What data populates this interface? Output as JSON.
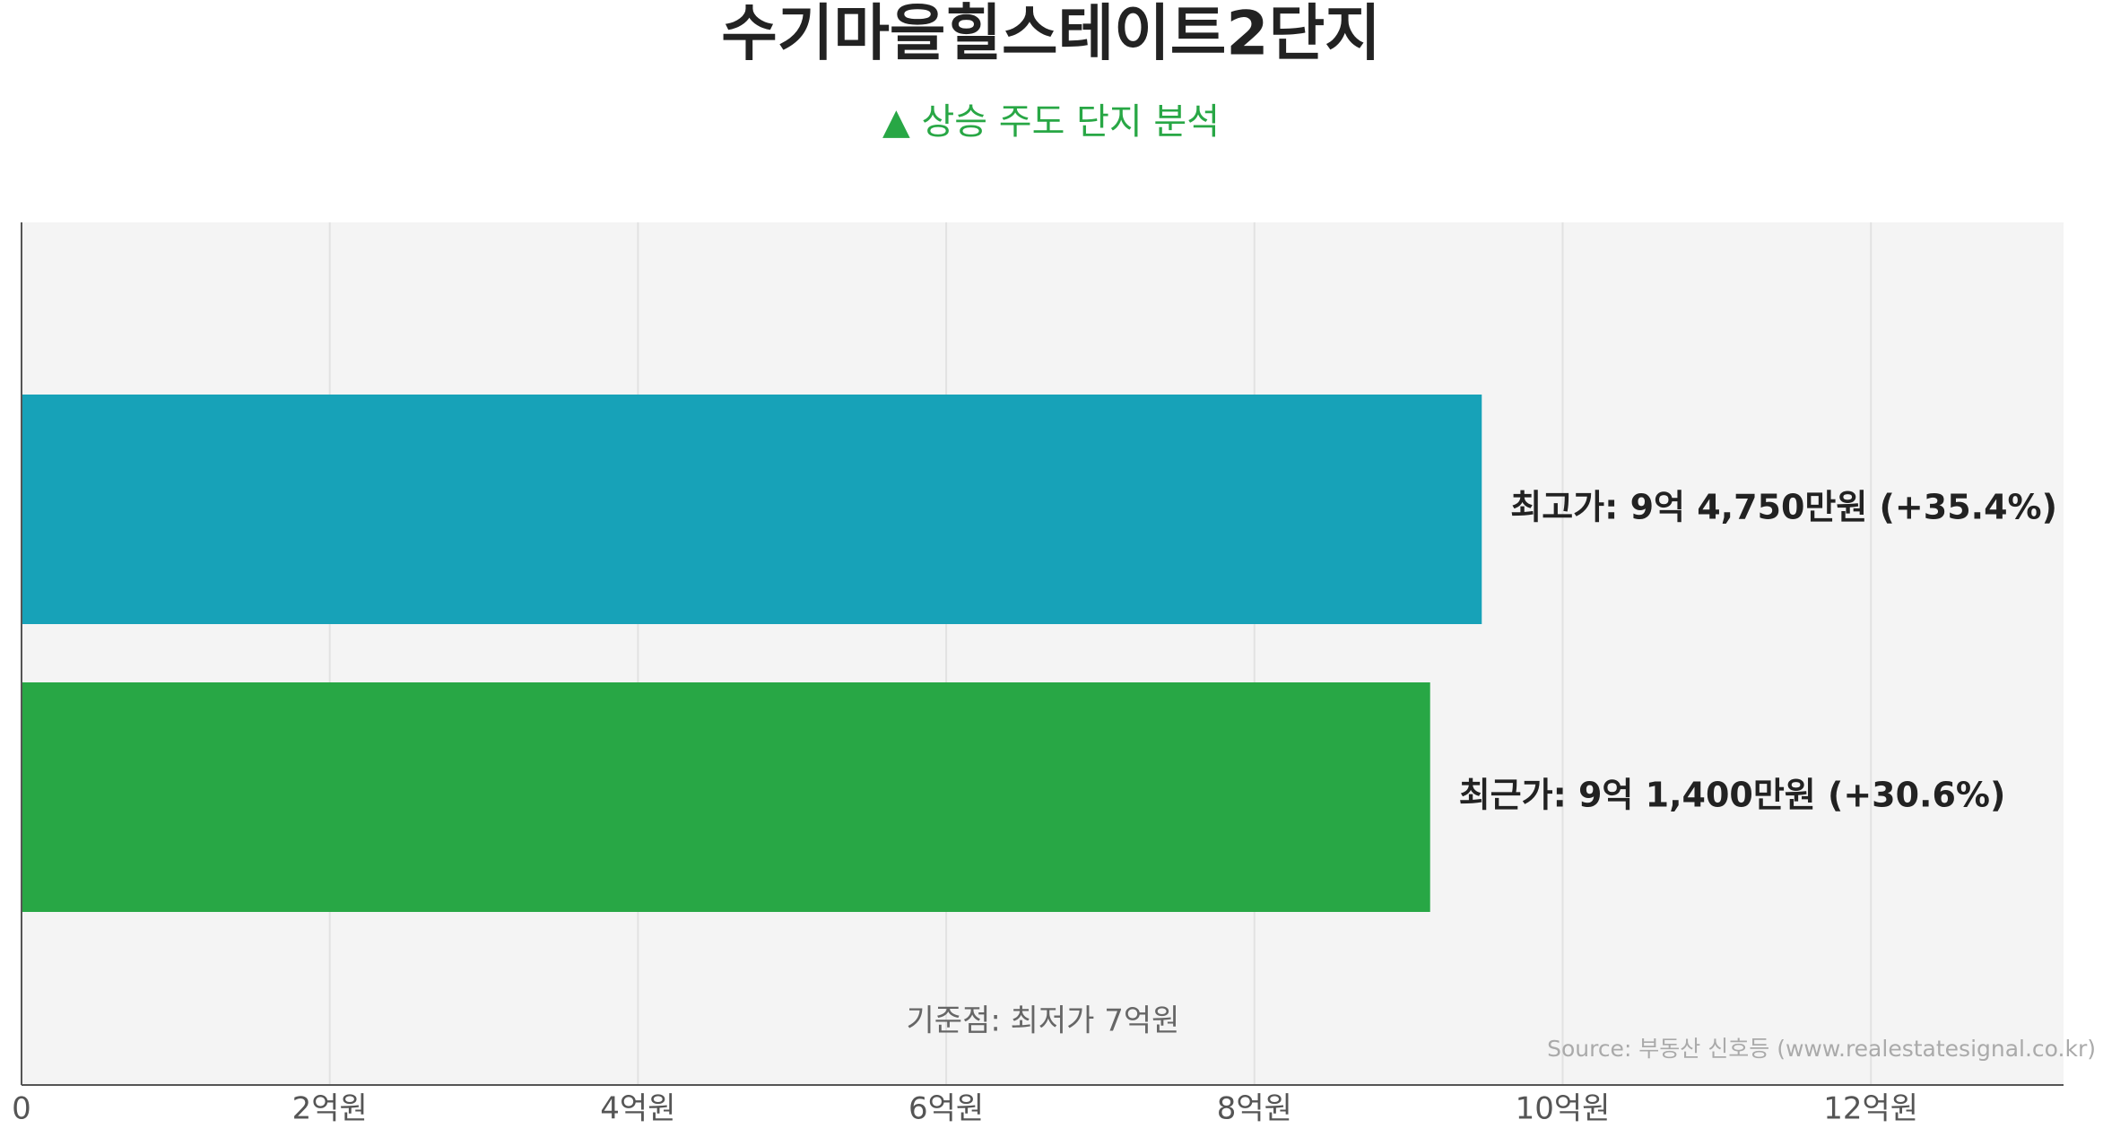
{
  "chart_data": {
    "type": "hbar",
    "title": "수기마을힐스테이트2단지",
    "subtitle": "▲ 상승 주도 단지 분석",
    "values": [
      9.475,
      9.14
    ],
    "value_labels": [
      "최고가: 9억 4,750만원 (+35.4%)",
      "최근가: 9억 1,400만원 (+30.6%)"
    ],
    "colors": [
      "#17a2b8",
      "#28a745"
    ],
    "xlim": [
      0,
      13.25
    ],
    "xticks": [
      0,
      {
        "value": 2,
        "label": "2억원"
      },
      {
        "value": 4,
        "label": "4억원"
      },
      {
        "value": 6,
        "label": "6억원"
      },
      {
        "value": 8,
        "label": "8억원"
      },
      {
        "value": 10,
        "label": "10억원"
      },
      {
        "value": 12,
        "label": "12억원"
      }
    ],
    "grid": true,
    "annotation": "기준점: 최저가 7억원",
    "source": "Source: 부동산 신호등 (www.realestatesignal.co.kr)"
  }
}
